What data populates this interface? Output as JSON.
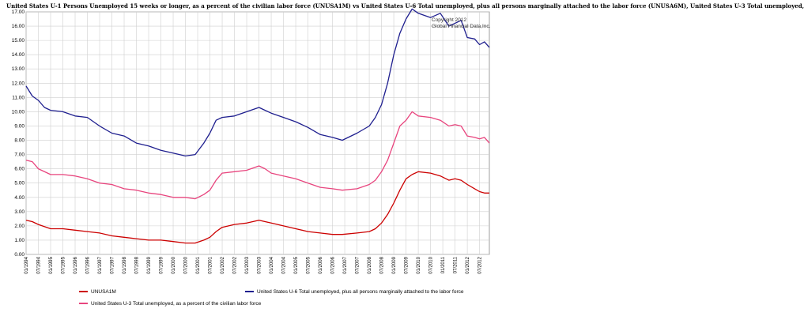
{
  "chart_data": {
    "type": "line",
    "title": "United States U-1 Persons Unemployed 15 weeks or longer, as a percent of the civilian labor force (UNUSA1M) vs United States U-6 Total unemployed, plus all persons marginally attached to the labor force (UNUSA6M), United States U-3 Total unemployed,",
    "watermark": [
      "Copyright 2012",
      "Global Financial Data,Inc."
    ],
    "ylim": [
      0,
      17
    ],
    "yticks": [
      "0.00",
      "1.00",
      "2.00",
      "3.00",
      "4.00",
      "5.00",
      "6.00",
      "7.00",
      "8.00",
      "9.00",
      "10.00",
      "11.00",
      "12.00",
      "13.00",
      "14.00",
      "15.00",
      "16.00",
      "17.00"
    ],
    "grid": true,
    "xlim": [
      1994.0,
      2012.9
    ],
    "xticks": [
      {
        "x": 1994.0,
        "label": "01/1994"
      },
      {
        "x": 1994.5,
        "label": "07/1994"
      },
      {
        "x": 1995.0,
        "label": "01/1995"
      },
      {
        "x": 1995.5,
        "label": "07/1995"
      },
      {
        "x": 1996.0,
        "label": "01/1996"
      },
      {
        "x": 1996.5,
        "label": "07/1996"
      },
      {
        "x": 1997.0,
        "label": "01/1997"
      },
      {
        "x": 1997.5,
        "label": "07/1997"
      },
      {
        "x": 1998.0,
        "label": "01/1998"
      },
      {
        "x": 1998.5,
        "label": "07/1998"
      },
      {
        "x": 1999.0,
        "label": "01/1999"
      },
      {
        "x": 1999.5,
        "label": "07/1999"
      },
      {
        "x": 2000.0,
        "label": "01/2000"
      },
      {
        "x": 2000.5,
        "label": "07/2000"
      },
      {
        "x": 2001.0,
        "label": "01/2001"
      },
      {
        "x": 2001.5,
        "label": "07/2001"
      },
      {
        "x": 2002.0,
        "label": "01/2002"
      },
      {
        "x": 2002.5,
        "label": "07/2002"
      },
      {
        "x": 2003.0,
        "label": "01/2003"
      },
      {
        "x": 2003.5,
        "label": "07/2003"
      },
      {
        "x": 2004.0,
        "label": "01/2004"
      },
      {
        "x": 2004.5,
        "label": "07/2004"
      },
      {
        "x": 2005.0,
        "label": "01/2005"
      },
      {
        "x": 2005.5,
        "label": "07/2005"
      },
      {
        "x": 2006.0,
        "label": "01/2006"
      },
      {
        "x": 2006.5,
        "label": "07/2006"
      },
      {
        "x": 2007.0,
        "label": "01/2007"
      },
      {
        "x": 2007.5,
        "label": "07/2007"
      },
      {
        "x": 2008.0,
        "label": "01/2008"
      },
      {
        "x": 2008.5,
        "label": "07/2008"
      },
      {
        "x": 2009.0,
        "label": "01/2009"
      },
      {
        "x": 2009.5,
        "label": "07/2009"
      },
      {
        "x": 2010.0,
        "label": "01/2010"
      },
      {
        "x": 2010.5,
        "label": "07/2010"
      },
      {
        "x": 2011.0,
        "label": "01/2011"
      },
      {
        "x": 2011.5,
        "label": "07/2011"
      },
      {
        "x": 2012.0,
        "label": "01/2012"
      },
      {
        "x": 2012.5,
        "label": "07/2012"
      }
    ],
    "series": [
      {
        "name": "United States U-6 Total unemployed, plus all persons marginally attached to the labor force",
        "color": "#1f1f8f",
        "x": [
          1994.0,
          1994.25,
          1994.5,
          1994.75,
          1995.0,
          1995.5,
          1996.0,
          1996.5,
          1997.0,
          1997.5,
          1998.0,
          1998.5,
          1999.0,
          1999.5,
          2000.0,
          2000.5,
          2000.9,
          2001.25,
          2001.5,
          2001.75,
          2002.0,
          2002.5,
          2003.0,
          2003.5,
          2003.75,
          2004.0,
          2004.5,
          2005.0,
          2005.5,
          2006.0,
          2006.5,
          2006.9,
          2007.5,
          2008.0,
          2008.25,
          2008.5,
          2008.75,
          2009.0,
          2009.25,
          2009.5,
          2009.75,
          2010.0,
          2010.5,
          2010.9,
          2011.25,
          2011.5,
          2011.75,
          2012.0,
          2012.3,
          2012.5,
          2012.7,
          2012.9
        ],
        "y": [
          11.8,
          11.1,
          10.8,
          10.3,
          10.1,
          10.0,
          9.7,
          9.6,
          9.0,
          8.5,
          8.3,
          7.8,
          7.6,
          7.3,
          7.1,
          6.9,
          7.0,
          7.8,
          8.5,
          9.4,
          9.6,
          9.7,
          10.0,
          10.3,
          10.1,
          9.9,
          9.6,
          9.3,
          8.9,
          8.4,
          8.2,
          8.0,
          8.5,
          9.0,
          9.6,
          10.5,
          12.0,
          14.0,
          15.5,
          16.5,
          17.2,
          16.9,
          16.6,
          16.9,
          16.0,
          16.2,
          16.4,
          15.2,
          15.1,
          14.7,
          14.9,
          14.5
        ]
      },
      {
        "name": "United States U-3 Total unemployed, as a percent of the civilian labor force",
        "color": "#e8457e",
        "x": [
          1994.0,
          1994.25,
          1994.5,
          1995.0,
          1995.5,
          1996.0,
          1996.5,
          1997.0,
          1997.5,
          1998.0,
          1998.5,
          1999.0,
          1999.5,
          2000.0,
          2000.5,
          2000.9,
          2001.25,
          2001.5,
          2001.75,
          2002.0,
          2002.5,
          2003.0,
          2003.5,
          2003.75,
          2004.0,
          2004.5,
          2005.0,
          2005.5,
          2006.0,
          2006.5,
          2006.9,
          2007.5,
          2008.0,
          2008.25,
          2008.5,
          2008.75,
          2009.0,
          2009.25,
          2009.5,
          2009.75,
          2010.0,
          2010.5,
          2010.9,
          2011.25,
          2011.5,
          2011.75,
          2012.0,
          2012.3,
          2012.5,
          2012.7,
          2012.9
        ],
        "y": [
          6.6,
          6.5,
          6.0,
          5.6,
          5.6,
          5.5,
          5.3,
          5.0,
          4.9,
          4.6,
          4.5,
          4.3,
          4.2,
          4.0,
          4.0,
          3.9,
          4.2,
          4.5,
          5.2,
          5.7,
          5.8,
          5.9,
          6.2,
          6.0,
          5.7,
          5.5,
          5.3,
          5.0,
          4.7,
          4.6,
          4.5,
          4.6,
          4.9,
          5.2,
          5.8,
          6.6,
          7.8,
          9.0,
          9.4,
          10.0,
          9.7,
          9.6,
          9.4,
          9.0,
          9.1,
          9.0,
          8.3,
          8.2,
          8.1,
          8.2,
          7.8
        ]
      },
      {
        "name": "UNUSA1M",
        "color": "#cc0000",
        "x": [
          1994.0,
          1994.25,
          1994.5,
          1995.0,
          1995.5,
          1996.0,
          1996.5,
          1997.0,
          1997.5,
          1998.0,
          1998.5,
          1999.0,
          1999.5,
          2000.0,
          2000.5,
          2000.9,
          2001.25,
          2001.5,
          2001.75,
          2002.0,
          2002.5,
          2003.0,
          2003.5,
          2003.75,
          2004.0,
          2004.5,
          2005.0,
          2005.5,
          2006.0,
          2006.5,
          2006.9,
          2007.5,
          2008.0,
          2008.25,
          2008.5,
          2008.75,
          2009.0,
          2009.25,
          2009.5,
          2009.75,
          2010.0,
          2010.5,
          2010.9,
          2011.25,
          2011.5,
          2011.75,
          2012.0,
          2012.3,
          2012.5,
          2012.7,
          2012.9
        ],
        "y": [
          2.4,
          2.3,
          2.1,
          1.8,
          1.8,
          1.7,
          1.6,
          1.5,
          1.3,
          1.2,
          1.1,
          1.0,
          1.0,
          0.9,
          0.8,
          0.8,
          1.0,
          1.2,
          1.6,
          1.9,
          2.1,
          2.2,
          2.4,
          2.3,
          2.2,
          2.0,
          1.8,
          1.6,
          1.5,
          1.4,
          1.4,
          1.5,
          1.6,
          1.8,
          2.2,
          2.8,
          3.6,
          4.5,
          5.3,
          5.6,
          5.8,
          5.7,
          5.5,
          5.2,
          5.3,
          5.2,
          4.9,
          4.6,
          4.4,
          4.3,
          4.3
        ]
      }
    ],
    "legend": [
      {
        "label": "UNUSA1M",
        "color": "#cc0000"
      },
      {
        "label": "United States U-6 Total unemployed, plus all persons marginally attached to the labor force",
        "color": "#1f1f8f"
      },
      {
        "label": "United States U-3 Total unemployed, as a percent of the civilian labor force",
        "color": "#e8457e"
      }
    ]
  }
}
